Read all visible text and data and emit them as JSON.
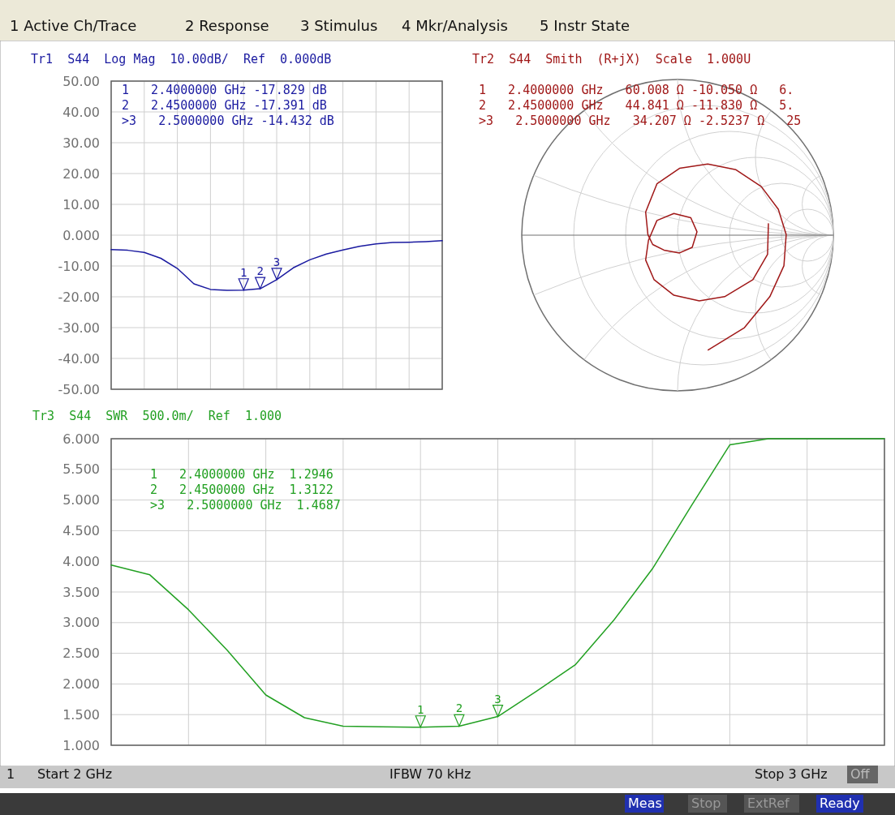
{
  "chart_data": [
    {
      "type": "other",
      "annotations": [
        "1 Active Ch/Trace",
        "2 Response",
        "3 Stimulus",
        "4 Mkr/Analysis",
        "5 Instr State"
      ]
    },
    {
      "type": "line",
      "title": "Tr1  S44  Log Mag  10.00dB/  Ref  0.000dB",
      "categories": [
        null,
        null,
        null,
        null,
        null,
        null,
        null,
        null,
        null,
        null,
        null,
        null,
        null,
        null,
        null,
        null,
        null,
        null,
        null,
        null,
        null
      ],
      "ylim": [
        -50,
        50
      ],
      "yticks": [
        {
          "value": 50,
          "label": "50.00"
        },
        {
          "value": 40,
          "label": "40.00"
        },
        {
          "value": 30,
          "label": "30.00"
        },
        {
          "value": 20,
          "label": "20.00"
        },
        {
          "value": 10,
          "label": "10.00"
        },
        {
          "value": 0,
          "label": "0.000"
        },
        {
          "value": -10,
          "label": "-10.00"
        },
        {
          "value": -20,
          "label": "-20.00"
        },
        {
          "value": -30,
          "label": "-30.00"
        },
        {
          "value": -40,
          "label": "-40.00"
        },
        {
          "value": -50,
          "label": "-50.00"
        }
      ],
      "tick_labels": "y",
      "grid": true,
      "series": [
        {
          "color": "#1a1aa0",
          "values": [
            -4.7,
            -4.9,
            -5.6,
            -7.5,
            -10.8,
            -15.8,
            -17.6,
            -17.9,
            -17.829,
            -17.391,
            -14.432,
            -10.6,
            -8.0,
            -6.1,
            -4.8,
            -3.6,
            -2.8,
            -2.4,
            -2.3,
            -2.1,
            -1.8
          ]
        }
      ],
      "annotations": [
        "1   2.4000000 GHz -17.829 dB",
        "2   2.4500000 GHz -17.391 dB",
        ">3   2.5000000 GHz -14.432 dB",
        {
          "text": "1",
          "y": -17.829
        },
        {
          "text": "2",
          "y": -17.391
        },
        {
          "text": "3",
          "y": -14.432
        }
      ]
    },
    {
      "type": "other",
      "title": "Tr2  S44  Smith  (R+jX)  Scale  1.000U",
      "annotations": [
        "1   2.4000000 GHz   60.008 Ω -10.050 Ω   6.",
        "2   2.4500000 GHz   44.841 Ω -11.830 Ω   5.",
        ">3   2.5000000 GHz   34.207 Ω -2.5237 Ω   25"
      ]
    },
    {
      "type": "line",
      "title": "Tr3  S44  SWR  500.0m/  Ref  1.000",
      "categories": [
        null,
        null,
        null,
        null,
        null,
        null,
        null,
        null,
        null,
        null,
        null,
        null,
        null,
        null,
        null,
        null,
        null,
        null,
        null,
        null,
        null
      ],
      "ylim": [
        1,
        6
      ],
      "yticks": [
        {
          "value": 6,
          "label": "6.000"
        },
        {
          "value": 5.5,
          "label": "5.500"
        },
        {
          "value": 5,
          "label": "5.000"
        },
        {
          "value": 4.5,
          "label": "4.500"
        },
        {
          "value": 4,
          "label": "4.000"
        },
        {
          "value": 3.5,
          "label": "3.500"
        },
        {
          "value": 3,
          "label": "3.000"
        },
        {
          "value": 2.5,
          "label": "2.500"
        },
        {
          "value": 2,
          "label": "2.000"
        },
        {
          "value": 1.5,
          "label": "1.500"
        },
        {
          "value": 1,
          "label": "1.000"
        }
      ],
      "tick_labels": "y",
      "grid": true,
      "series": [
        {
          "color": "#22a022",
          "values": [
            3.94,
            3.78,
            3.21,
            2.55,
            1.82,
            1.45,
            1.31,
            1.3,
            1.2946,
            1.3122,
            1.4687,
            1.88,
            2.31,
            3.04,
            3.88,
            4.9,
            5.9,
            6.0,
            6.0,
            6.0,
            6.0
          ]
        }
      ],
      "annotations": [
        "1   2.4000000 GHz  1.2946",
        "2   2.4500000 GHz  1.3122",
        ">3   2.5000000 GHz  1.4687",
        {
          "text": "1",
          "y": 1.2946
        },
        {
          "text": "2",
          "y": 1.3122
        },
        {
          "text": "3",
          "y": 1.4687
        }
      ]
    },
    {
      "type": "other",
      "annotations": [
        "1",
        "Start 2 GHz",
        "IFBW 70 kHz",
        "Stop 3 GHz",
        "Off",
        "Meas",
        "Stop",
        "ExtRef",
        "Ready"
      ]
    }
  ]
}
